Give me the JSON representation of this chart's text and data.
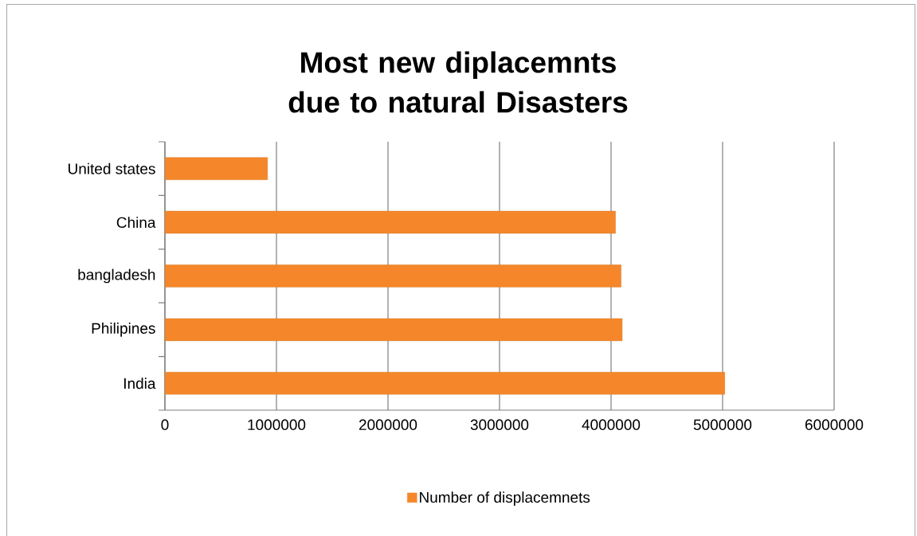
{
  "chart_data": {
    "type": "bar",
    "orientation": "horizontal",
    "title": "Most new diplacemnts due to natural Disasters",
    "categories": [
      "United states",
      "China",
      "bangladesh",
      "Philipines",
      "India"
    ],
    "series": [
      {
        "name": "Number of displacemnets",
        "color": "#f5872a",
        "values": [
          920000,
          4040000,
          4090000,
          4100000,
          5020000
        ]
      }
    ],
    "xlim": [
      0,
      6000000
    ],
    "xticks": [
      0,
      1000000,
      2000000,
      3000000,
      4000000,
      5000000,
      6000000
    ],
    "grid": "x",
    "legend": "bottom"
  }
}
